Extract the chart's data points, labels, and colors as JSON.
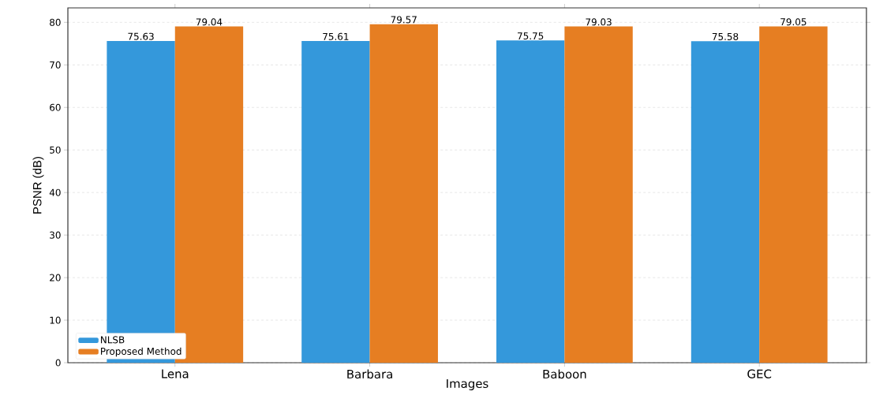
{
  "chart_data": {
    "type": "bar",
    "xlabel": "Images",
    "ylabel": "PSNR (dB)",
    "categories": [
      "Lena",
      "Barbara",
      "Baboon",
      "GEC"
    ],
    "series": [
      {
        "name": "NLSB",
        "color": "#3498db",
        "values": [
          75.63,
          75.61,
          75.75,
          75.58
        ]
      },
      {
        "name": "Proposed Method",
        "color": "#e67e22",
        "values": [
          79.04,
          79.57,
          79.03,
          79.05
        ]
      }
    ],
    "ylim": [
      0,
      83.4
    ],
    "yticks": [
      0,
      10,
      20,
      30,
      40,
      50,
      60,
      70,
      80
    ],
    "grid": "y",
    "legend": "bottom left",
    "data_labels": true
  }
}
